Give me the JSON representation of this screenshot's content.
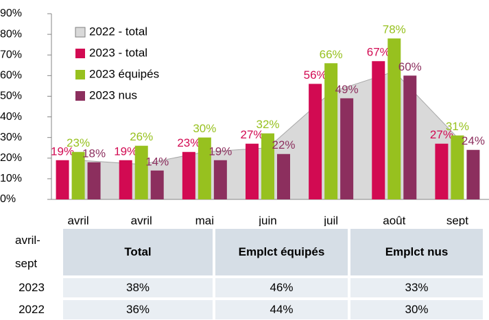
{
  "chart_data": {
    "type": "bar",
    "categories": [
      "avril",
      "avril",
      "mai",
      "juin",
      "juil",
      "août",
      "sept"
    ],
    "series": [
      {
        "name": "2022 - total",
        "type": "area",
        "color": "#d9d9d9",
        "values": [
          19,
          17,
          23,
          25,
          52,
          62,
          30
        ]
      },
      {
        "name": "2023 - total",
        "color": "#d20a52",
        "values": [
          19,
          19,
          23,
          27,
          56,
          67,
          27
        ],
        "value_labels": [
          "19%",
          "19%",
          "23%",
          "27%",
          "56%",
          "67%",
          "27%"
        ]
      },
      {
        "name": "2023 équipés",
        "color": "#97c11f",
        "values": [
          23,
          26,
          30,
          32,
          66,
          78,
          31
        ],
        "value_labels": [
          "23%",
          "26%",
          "30%",
          "32%",
          "66%",
          "78%",
          "31%"
        ]
      },
      {
        "name": "2023 nus",
        "color": "#8c2f5e",
        "values": [
          18,
          14,
          19,
          22,
          49,
          60,
          24
        ],
        "value_labels": [
          "18%",
          "14%",
          "19%",
          "22%",
          "49%",
          "60%",
          "24%"
        ]
      }
    ],
    "ylim": [
      0,
      90
    ],
    "yticks": [
      {
        "value": 0,
        "label": "0%"
      },
      {
        "value": 10,
        "label": "10%"
      },
      {
        "value": 20,
        "label": "20%"
      },
      {
        "value": 30,
        "label": "30%"
      },
      {
        "value": 40,
        "label": "40%"
      },
      {
        "value": 50,
        "label": "50%"
      },
      {
        "value": 60,
        "label": "60%"
      },
      {
        "value": 70,
        "label": "70%"
      },
      {
        "value": 80,
        "label": "80%"
      },
      {
        "value": 90,
        "label": "90%"
      }
    ],
    "legend": "upper left"
  },
  "table": {
    "corner": "avril-sept",
    "header": [
      "Total",
      "Emplct équipés",
      "Emplct nus"
    ],
    "rows": [
      [
        "2023",
        "38%",
        "46%",
        "33%"
      ],
      [
        "2022",
        "36%",
        "44%",
        "30%"
      ]
    ]
  }
}
